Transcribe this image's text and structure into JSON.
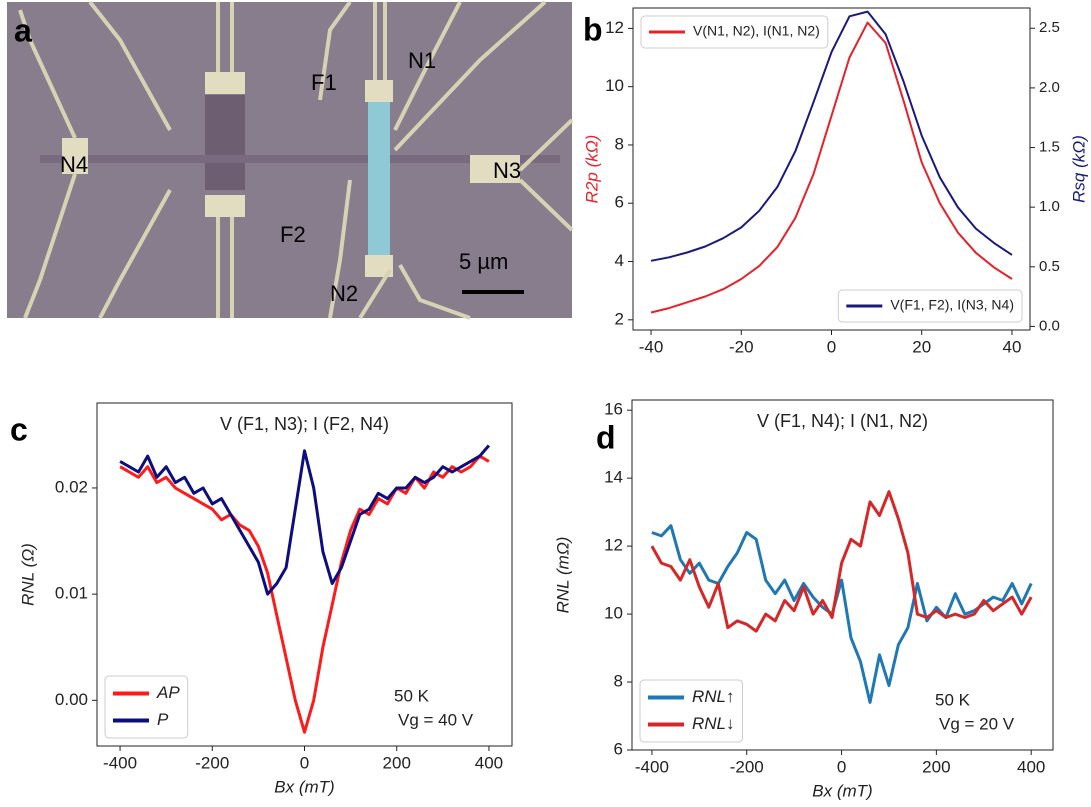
{
  "image": {
    "panel_label": "a",
    "labels": [
      "N1",
      "F1",
      "N4",
      "N3",
      "F2",
      "N2"
    ],
    "scale_bar": "5 µm"
  },
  "chart_data": [
    {
      "type": "line",
      "panel_label": "b",
      "xlim": [
        -44,
        44
      ],
      "xticks": [
        -40,
        -20,
        0,
        20,
        40
      ],
      "ylim": [
        1.65,
        12.7
      ],
      "yticks": [
        2,
        4,
        6,
        8,
        10,
        12
      ],
      "y2lim": [
        -0.03,
        2.67
      ],
      "y2ticks": [
        {
          "value": 0,
          "label": "0.0"
        },
        0.5,
        {
          "value": 1,
          "label": "1.0"
        },
        1.5,
        {
          "value": 2,
          "label": "2.0"
        },
        2.5
      ],
      "ylabel": "R2p (kΩ)",
      "y2label": "Rsq (kΩ)",
      "axis_label_color": true,
      "x": [
        -40,
        -36,
        -32,
        -28,
        -24,
        -20,
        -16,
        -12,
        -8,
        -4,
        0,
        4,
        8,
        12,
        16,
        20,
        24,
        28,
        32,
        36,
        40
      ],
      "series": [
        {
          "name": "V(N1, N2), I(N1, N2)",
          "color": "#e8202a",
          "legend": "upper left",
          "values": [
            2.25,
            2.4,
            2.6,
            2.8,
            3.05,
            3.4,
            3.85,
            4.5,
            5.5,
            7.0,
            9.0,
            11.0,
            12.2,
            11.5,
            9.5,
            7.4,
            6.0,
            5.0,
            4.3,
            3.8,
            3.4
          ]
        },
        {
          "name": "V(F1, F2), I(N3, N4)",
          "color": "#1a1a7e",
          "legend": "lower right",
          "axis": "y2",
          "values": [
            0.55,
            0.58,
            0.62,
            0.67,
            0.74,
            0.83,
            0.97,
            1.17,
            1.47,
            1.88,
            2.3,
            2.6,
            2.64,
            2.45,
            2.05,
            1.6,
            1.25,
            1.0,
            0.82,
            0.7,
            0.6
          ]
        }
      ]
    },
    {
      "type": "line",
      "panel_label": "c",
      "title": "V (F1, N3); I (F2, N4)",
      "annotations": [
        "50 K",
        "Vg = 40 V"
      ],
      "xlim": [
        -450,
        450
      ],
      "xticks": [
        -400,
        -200,
        0,
        200,
        400
      ],
      "ylim": [
        -0.0043,
        0.028
      ],
      "yticks": [
        {
          "value": 0,
          "label": "0.00"
        },
        0.01,
        0.02
      ],
      "xlabel": "Bx (mT)",
      "ylabel": "RNL (Ω)",
      "legend": "lower left",
      "x": [
        -400,
        -380,
        -360,
        -340,
        -320,
        -300,
        -280,
        -260,
        -240,
        -220,
        -200,
        -180,
        -160,
        -140,
        -120,
        -100,
        -80,
        -60,
        -40,
        -20,
        0,
        20,
        40,
        60,
        80,
        100,
        120,
        140,
        160,
        180,
        200,
        220,
        240,
        260,
        280,
        300,
        320,
        340,
        360,
        380,
        400
      ],
      "series": [
        {
          "name": "AP",
          "color": "#ff1a1a",
          "values": [
            0.022,
            0.0215,
            0.021,
            0.022,
            0.0205,
            0.021,
            0.02,
            0.0195,
            0.019,
            0.0185,
            0.018,
            0.017,
            0.0175,
            0.0165,
            0.016,
            0.0145,
            0.012,
            0.008,
            0.004,
            0.0,
            -0.003,
            0.0,
            0.005,
            0.009,
            0.013,
            0.016,
            0.018,
            0.0175,
            0.019,
            0.0185,
            0.02,
            0.0195,
            0.021,
            0.02,
            0.0215,
            0.021,
            0.022,
            0.0215,
            0.022,
            0.023,
            0.0225
          ]
        },
        {
          "name": "P",
          "color": "#0d0d80",
          "values": [
            0.0225,
            0.022,
            0.0215,
            0.023,
            0.021,
            0.022,
            0.0205,
            0.021,
            0.0195,
            0.02,
            0.0185,
            0.019,
            0.0175,
            0.016,
            0.0145,
            0.013,
            0.01,
            0.011,
            0.0125,
            0.018,
            0.0235,
            0.02,
            0.014,
            0.011,
            0.0125,
            0.015,
            0.0175,
            0.018,
            0.0195,
            0.019,
            0.02,
            0.02,
            0.021,
            0.0205,
            0.021,
            0.022,
            0.0215,
            0.022,
            0.0225,
            0.023,
            0.024
          ]
        }
      ]
    },
    {
      "type": "line",
      "panel_label": "d",
      "title": "V (F1, N4); I (N1, N2)",
      "annotations": [
        "50 K",
        "Vg = 20 V"
      ],
      "xlim": [
        -442,
        446
      ],
      "xticks": [
        -400,
        -200,
        0,
        200,
        400
      ],
      "ylim": [
        6,
        16.3
      ],
      "yticks": [
        6,
        8,
        10,
        12,
        14,
        16
      ],
      "xlabel": "Bx (mT)",
      "ylabel": "RNL (mΩ)",
      "legend": "lower left",
      "x": [
        -400,
        -380,
        -360,
        -340,
        -320,
        -300,
        -280,
        -260,
        -240,
        -220,
        -200,
        -180,
        -160,
        -140,
        -120,
        -100,
        -80,
        -60,
        -40,
        -20,
        0,
        20,
        40,
        60,
        80,
        100,
        120,
        140,
        160,
        180,
        200,
        220,
        240,
        260,
        280,
        300,
        320,
        340,
        360,
        380,
        400
      ],
      "series": [
        {
          "name": "RNL↑",
          "color": "#1f77b4",
          "values": [
            12.4,
            12.3,
            12.6,
            11.6,
            11.2,
            11.5,
            11.0,
            10.9,
            11.4,
            11.8,
            12.4,
            12.2,
            11.0,
            10.6,
            11.0,
            10.4,
            10.9,
            10.5,
            10.2,
            10.0,
            11.0,
            9.3,
            8.6,
            7.4,
            8.8,
            7.9,
            9.1,
            9.6,
            10.9,
            9.8,
            10.2,
            9.9,
            10.6,
            10.0,
            10.1,
            10.3,
            10.5,
            10.4,
            10.9,
            10.3,
            10.9
          ]
        },
        {
          "name": "RNL↓",
          "color": "#d62728",
          "values": [
            12.0,
            11.5,
            11.4,
            11.0,
            11.6,
            10.8,
            10.2,
            10.9,
            9.6,
            9.8,
            9.7,
            9.5,
            10.0,
            9.8,
            10.4,
            10.1,
            10.8,
            10.0,
            10.4,
            9.9,
            11.5,
            12.2,
            12.0,
            13.3,
            12.9,
            13.6,
            12.8,
            11.8,
            10.0,
            9.9,
            10.1,
            9.9,
            10.0,
            9.9,
            10.0,
            10.4,
            10.1,
            10.3,
            10.5,
            10.0,
            10.5
          ]
        }
      ]
    }
  ]
}
